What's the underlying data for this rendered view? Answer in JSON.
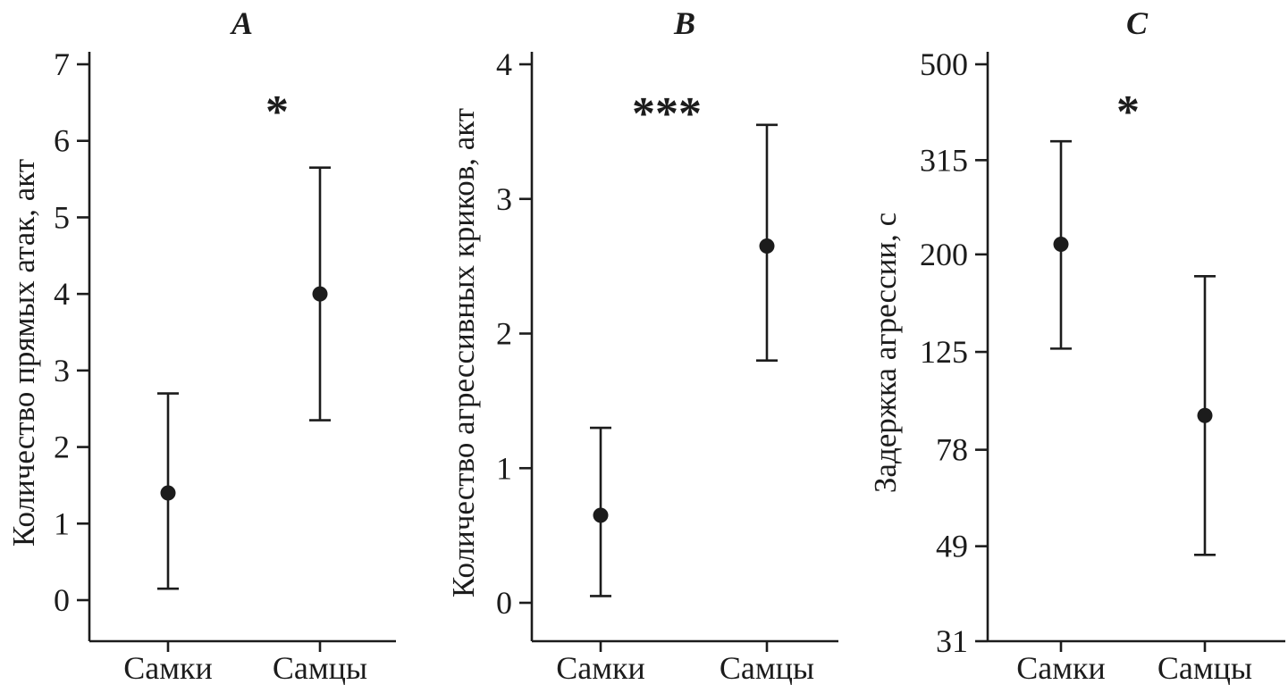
{
  "figure": {
    "background": "#ffffff",
    "ink_color": "#1c1c1c",
    "panel_titles": [
      "A",
      "B",
      "C"
    ]
  },
  "chart_data": [
    {
      "type": "scatter",
      "title": "A",
      "ylabel": "Количество прямых атак, акт",
      "categories": [
        "Самки",
        "Самцы"
      ],
      "series": [
        {
          "category": "Самки",
          "mean": 1.4,
          "ci_low": 0.15,
          "ci_high": 2.7
        },
        {
          "category": "Самцы",
          "mean": 4.0,
          "ci_low": 2.35,
          "ci_high": 5.65
        }
      ],
      "yticks": [
        0,
        1,
        2,
        3,
        4,
        5,
        6,
        7
      ],
      "ylim": [
        0,
        7
      ],
      "yscale": "linear",
      "significance": "*",
      "grid": false,
      "legend": "none",
      "marker": "filled-circle",
      "error_bar_style": "capped"
    },
    {
      "type": "scatter",
      "title": "B",
      "ylabel": "Количество агрессивных криков, акт",
      "categories": [
        "Самки",
        "Самцы"
      ],
      "series": [
        {
          "category": "Самки",
          "mean": 0.65,
          "ci_low": 0.05,
          "ci_high": 1.3
        },
        {
          "category": "Самцы",
          "mean": 2.65,
          "ci_low": 1.8,
          "ci_high": 3.55
        }
      ],
      "yticks": [
        0,
        1,
        2,
        3,
        4
      ],
      "ylim": [
        0,
        4
      ],
      "yscale": "linear",
      "significance": "***",
      "grid": false,
      "legend": "none",
      "marker": "filled-circle",
      "error_bar_style": "capped"
    },
    {
      "type": "scatter",
      "title": "C",
      "ylabel": "Задержка агрессии, с",
      "categories": [
        "Самки",
        "Самцы"
      ],
      "series": [
        {
          "category": "Самки",
          "mean": 210,
          "ci_low": 127,
          "ci_high": 345
        },
        {
          "category": "Самцы",
          "mean": 92,
          "ci_low": 47,
          "ci_high": 180
        }
      ],
      "yticks": [
        500,
        315,
        200,
        125,
        78,
        49,
        31
      ],
      "ylim": [
        31,
        500
      ],
      "yscale": "log",
      "significance": "*",
      "grid": false,
      "legend": "none",
      "marker": "filled-circle",
      "error_bar_style": "capped"
    }
  ]
}
